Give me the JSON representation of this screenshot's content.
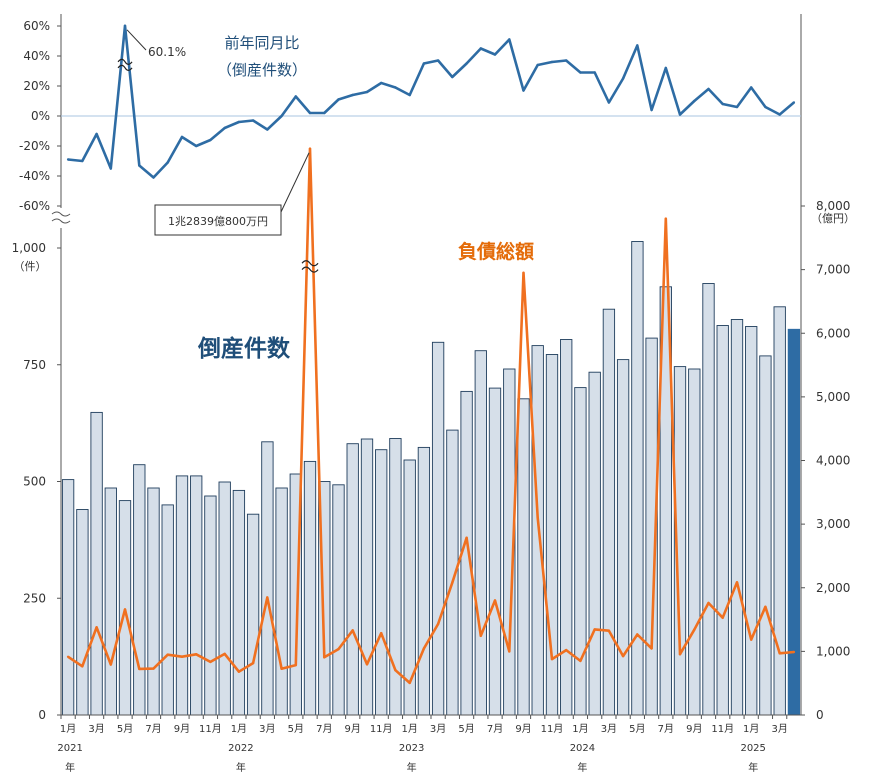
{
  "chart_data": [
    {
      "type": "line",
      "title": "前年同月比",
      "subtitle": "（倒産件数）",
      "y_tick_labels": [
        "60%",
        "40%",
        "20%",
        "0%",
        "-20%",
        "-40%",
        "-60%"
      ],
      "ylim": [
        -60,
        60
      ],
      "axis_break": true,
      "annotation": "60.1%",
      "series": [
        {
          "color": "#2e6ca4",
          "values": [
            -29,
            -30,
            -12,
            -35,
            60.1,
            -33,
            -41,
            -31,
            -14,
            -20,
            -16,
            -8,
            -4,
            -3,
            -9,
            0,
            13,
            2,
            2,
            11,
            14,
            16,
            22,
            19,
            14,
            35,
            37,
            26,
            35,
            45,
            41,
            51,
            17,
            34,
            36,
            37,
            29,
            29,
            9,
            25,
            47,
            4,
            32,
            1,
            10,
            18,
            8,
            6,
            19,
            6,
            1,
            9
          ]
        }
      ]
    },
    {
      "type": "bar",
      "label": "倒産件数",
      "y_unit": "（件）",
      "y_tick_labels": [
        "0",
        "250",
        "500",
        "750",
        "1,000"
      ],
      "ylim": [
        0,
        1000
      ],
      "bar_color": "#d6dfe9",
      "highlight_color": "#2e6ca4",
      "values": [
        504,
        440,
        648,
        486,
        459,
        536,
        486,
        450,
        512,
        512,
        469,
        499,
        481,
        430,
        585,
        486,
        516,
        543,
        500,
        493,
        581,
        591,
        568,
        592,
        546,
        573,
        798,
        610,
        693,
        780,
        700,
        741,
        677,
        791,
        772,
        804,
        701,
        734,
        869,
        761,
        1014,
        807,
        917,
        746,
        741,
        924,
        834,
        847,
        832,
        769,
        874,
        826
      ]
    },
    {
      "type": "line",
      "label": "負債総額",
      "y_unit": "（億円）",
      "y_tick_labels": [
        "0",
        "1,000",
        "2,000",
        "3,000",
        "4,000",
        "5,000",
        "6,000",
        "7,000",
        "8,000"
      ],
      "ylim": [
        0,
        8000
      ],
      "color": "#f07020",
      "annotation": "1兆2839億800万円",
      "values": [
        914,
        766,
        1379,
        794,
        1660,
        724,
        730,
        947,
        916,
        954,
        835,
        961,
        681,
        815,
        1847,
        727,
        784,
        12839,
        907,
        1036,
        1330,
        797,
        1285,
        704,
        505,
        1045,
        1430,
        2080,
        2785,
        1245,
        1800,
        1000,
        6950,
        3100,
        878,
        1020,
        850,
        1345,
        1325,
        925,
        1265,
        1047,
        7800,
        955,
        1340,
        1760,
        1530,
        2085,
        1185,
        1700,
        970,
        990
      ]
    }
  ],
  "x_month_labels": [
    "1月",
    "",
    "3月",
    "",
    "5月",
    "",
    "7月",
    "",
    "9月",
    "",
    "11月",
    "",
    "1月",
    "",
    "3月",
    "",
    "5月",
    "",
    "7月",
    "",
    "9月",
    "",
    "11月",
    "",
    "1月",
    "",
    "3月",
    "",
    "5月",
    "",
    "7月",
    "",
    "9月",
    "",
    "11月",
    "",
    "1月",
    "",
    "3月",
    "",
    "5月",
    "",
    "7月",
    "",
    "9月",
    "",
    "11月",
    "",
    "1月",
    "",
    "3月",
    ""
  ],
  "x_year_labels": [
    {
      "month_index": 0,
      "year": "2021",
      "suffix": "年"
    },
    {
      "month_index": 12,
      "year": "2022",
      "suffix": "年"
    },
    {
      "month_index": 24,
      "year": "2023",
      "suffix": "年"
    },
    {
      "month_index": 36,
      "year": "2024",
      "suffix": "年"
    },
    {
      "month_index": 48,
      "year": "2025",
      "suffix": "年"
    }
  ]
}
